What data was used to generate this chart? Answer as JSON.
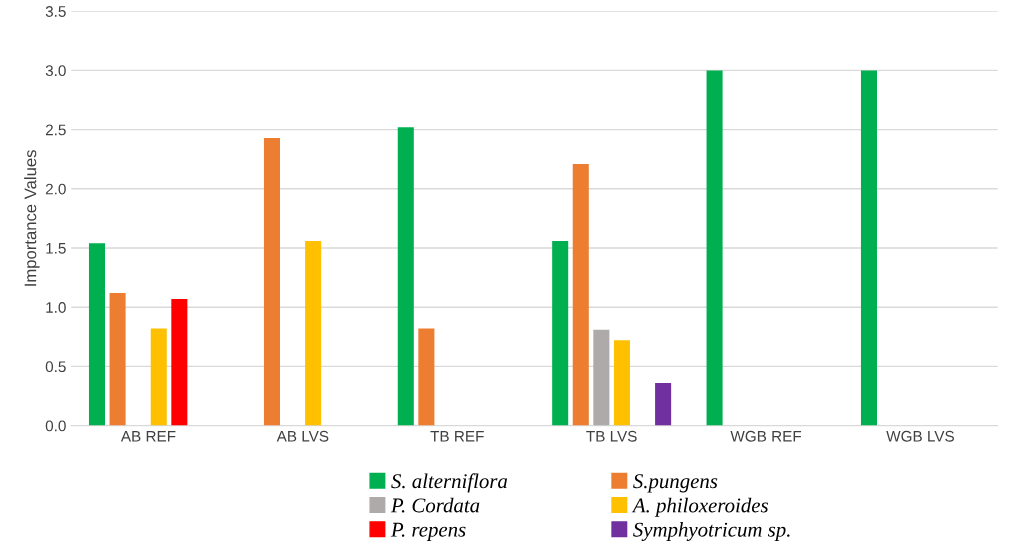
{
  "chart_data": {
    "type": "bar",
    "ylabel": "Importance Values",
    "categories": [
      "AB REF",
      "AB LVS",
      "TB REF",
      "TB LVS",
      "WGB REF",
      "WGB LVS"
    ],
    "series": [
      {
        "name": "S. alterniflora",
        "color": "#00b050",
        "values": [
          1.54,
          null,
          2.52,
          1.56,
          3.0,
          3.0
        ]
      },
      {
        "name": "S.pungens",
        "color": "#ed7d31",
        "values": [
          1.12,
          2.43,
          0.82,
          2.21,
          null,
          null
        ]
      },
      {
        "name": "P. Cordata",
        "color": "#aeaaaa",
        "values": [
          null,
          null,
          null,
          0.81,
          null,
          null
        ]
      },
      {
        "name": "A. philoxeroides",
        "color": "#ffc000",
        "values": [
          0.82,
          1.56,
          null,
          0.72,
          null,
          null
        ]
      },
      {
        "name": "P. repens",
        "color": "#ff0000",
        "values": [
          1.07,
          null,
          null,
          null,
          null,
          null
        ]
      },
      {
        "name": "Symphyotricum sp.",
        "color": "#7030a0",
        "values": [
          null,
          null,
          null,
          0.36,
          null,
          null
        ]
      }
    ],
    "ylim": [
      0,
      3.5
    ],
    "yticks": [
      {
        "value": 0,
        "label": "0.0"
      },
      0.5,
      {
        "value": 1,
        "label": "1.0"
      },
      1.5,
      {
        "value": 2,
        "label": "2.0"
      },
      2.5,
      {
        "value": 3,
        "label": "3.0"
      },
      3.5
    ],
    "grid": "y",
    "legend": "bottom"
  }
}
